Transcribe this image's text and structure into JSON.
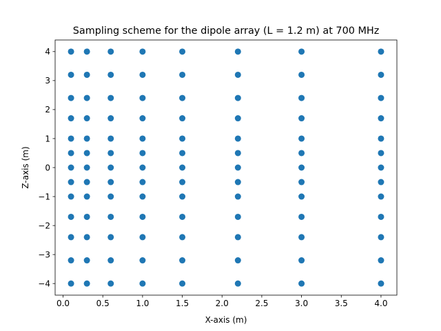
{
  "chart_data": {
    "type": "scatter",
    "title": "Sampling scheme for the dipole array (L = 1.2 m) at 700 MHz",
    "xlabel": "X-axis (m)",
    "ylabel": "Z-axis (m)",
    "xlim": [
      -0.1,
      4.2
    ],
    "ylim": [
      -4.4,
      4.4
    ],
    "xticks": [
      0.0,
      0.5,
      1.0,
      1.5,
      2.0,
      2.5,
      3.0,
      3.5,
      4.0
    ],
    "xtick_labels": [
      "0.0",
      "0.5",
      "1.0",
      "1.5",
      "2.0",
      "2.5",
      "3.0",
      "3.5",
      "4.0"
    ],
    "yticks": [
      -4,
      -3,
      -2,
      -1,
      0,
      1,
      2,
      3,
      4
    ],
    "ytick_labels": [
      "−4",
      "−3",
      "−2",
      "−1",
      "0",
      "1",
      "2",
      "3",
      "4"
    ],
    "grid": false,
    "legend": "none",
    "marker_color": "#1f77b4",
    "grid_x": [
      0.1,
      0.3,
      0.6,
      1.0,
      1.5,
      2.2,
      3.0,
      4.0
    ],
    "grid_z": [
      -4.0,
      -3.2,
      -2.4,
      -1.7,
      -1.0,
      -0.5,
      0.0,
      0.5,
      1.0,
      1.7,
      2.4,
      3.2,
      4.0
    ]
  }
}
